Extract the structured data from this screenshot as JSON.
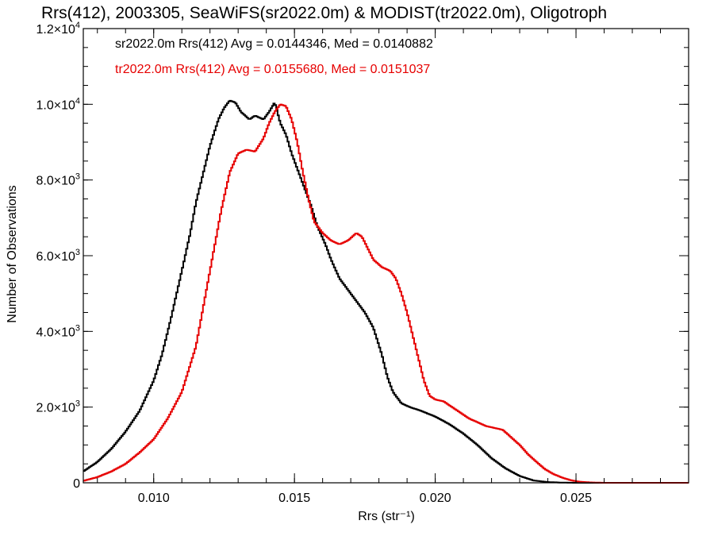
{
  "chart_data": {
    "type": "line",
    "title": "Rrs(412), 2003305, SeaWiFS(sr2022.0m) & MODIST(tr2022.0m), Oligotroph",
    "xlabel": "Rrs (str⁻¹)",
    "ylabel": "Number of Observations",
    "xlim": [
      0.0075,
      0.029
    ],
    "ylim": [
      0,
      12000
    ],
    "grid": false,
    "step_style": "histogram",
    "x_ticks": [
      {
        "value": 0.01,
        "label": "0.010"
      },
      {
        "value": 0.015,
        "label": "0.015"
      },
      {
        "value": 0.02,
        "label": "0.020"
      },
      {
        "value": 0.025,
        "label": "0.025"
      }
    ],
    "y_ticks": [
      {
        "value": 0,
        "mant": "0",
        "exp": ""
      },
      {
        "value": 2000,
        "mant": "2.0×10",
        "exp": "3"
      },
      {
        "value": 4000,
        "mant": "4.0×10",
        "exp": "3"
      },
      {
        "value": 6000,
        "mant": "6.0×10",
        "exp": "3"
      },
      {
        "value": 8000,
        "mant": "8.0×10",
        "exp": "3"
      },
      {
        "value": 10000,
        "mant": "1.0×10",
        "exp": "4"
      },
      {
        "value": 12000,
        "mant": "1.2×10",
        "exp": "4"
      }
    ],
    "series": [
      {
        "name": "sr2022.0m",
        "legend": "sr2022.0m Rrs(412) Avg = 0.0144346, Med = 0.0140882",
        "color": "#000000",
        "x": [
          0.0075,
          0.008,
          0.0085,
          0.009,
          0.0095,
          0.01,
          0.0103,
          0.0106,
          0.011,
          0.0113,
          0.0115,
          0.0118,
          0.012,
          0.0123,
          0.0125,
          0.0127,
          0.0129,
          0.0131,
          0.0134,
          0.0136,
          0.0139,
          0.0141,
          0.0143,
          0.0145,
          0.0147,
          0.0149,
          0.0151,
          0.0153,
          0.0156,
          0.0158,
          0.0161,
          0.0163,
          0.0166,
          0.017,
          0.0173,
          0.0175,
          0.0178,
          0.0181,
          0.0183,
          0.0185,
          0.0188,
          0.0191,
          0.0195,
          0.02,
          0.0205,
          0.021,
          0.0215,
          0.022,
          0.0225,
          0.023,
          0.0235,
          0.024,
          0.0245,
          0.025,
          0.0255,
          0.026,
          0.027,
          0.029
        ],
        "y": [
          300,
          550,
          900,
          1350,
          1900,
          2700,
          3400,
          4300,
          5600,
          6600,
          7400,
          8300,
          8900,
          9600,
          9900,
          10100,
          10050,
          9800,
          9600,
          9700,
          9600,
          9800,
          10050,
          9500,
          9200,
          8700,
          8300,
          7900,
          7300,
          6800,
          6300,
          5900,
          5400,
          5000,
          4700,
          4500,
          4100,
          3400,
          2800,
          2400,
          2100,
          2000,
          1900,
          1750,
          1550,
          1300,
          1000,
          650,
          380,
          180,
          60,
          20,
          5,
          0,
          0,
          0,
          0,
          0
        ]
      },
      {
        "name": "tr2022.0m",
        "legend": "tr2022.0m Rrs(412) Avg = 0.0155680, Med = 0.0151037",
        "color": "#e60000",
        "x": [
          0.0075,
          0.008,
          0.0085,
          0.009,
          0.0095,
          0.01,
          0.0105,
          0.011,
          0.0115,
          0.0118,
          0.0121,
          0.0124,
          0.0127,
          0.013,
          0.0133,
          0.0136,
          0.0139,
          0.0141,
          0.0143,
          0.0145,
          0.0147,
          0.0149,
          0.0151,
          0.0153,
          0.0155,
          0.0157,
          0.016,
          0.0163,
          0.0166,
          0.0169,
          0.0172,
          0.0174,
          0.0176,
          0.0178,
          0.0181,
          0.0184,
          0.0186,
          0.0188,
          0.019,
          0.0192,
          0.0194,
          0.0196,
          0.0198,
          0.02,
          0.0203,
          0.0206,
          0.0209,
          0.0212,
          0.0215,
          0.0218,
          0.0221,
          0.0224,
          0.0227,
          0.023,
          0.0233,
          0.0236,
          0.0239,
          0.0242,
          0.0245,
          0.0248,
          0.0251,
          0.0255,
          0.026,
          0.027,
          0.029
        ],
        "y": [
          50,
          150,
          300,
          500,
          800,
          1150,
          1700,
          2400,
          3600,
          4800,
          6000,
          7200,
          8200,
          8700,
          8800,
          8750,
          9100,
          9500,
          9800,
          10000,
          9950,
          9600,
          9000,
          8200,
          7500,
          6900,
          6600,
          6400,
          6300,
          6400,
          6600,
          6500,
          6200,
          5900,
          5700,
          5600,
          5400,
          5000,
          4500,
          3900,
          3300,
          2700,
          2300,
          2200,
          2150,
          2000,
          1850,
          1700,
          1600,
          1500,
          1450,
          1400,
          1200,
          1000,
          750,
          550,
          360,
          230,
          140,
          70,
          30,
          10,
          0,
          0,
          0
        ]
      }
    ]
  }
}
